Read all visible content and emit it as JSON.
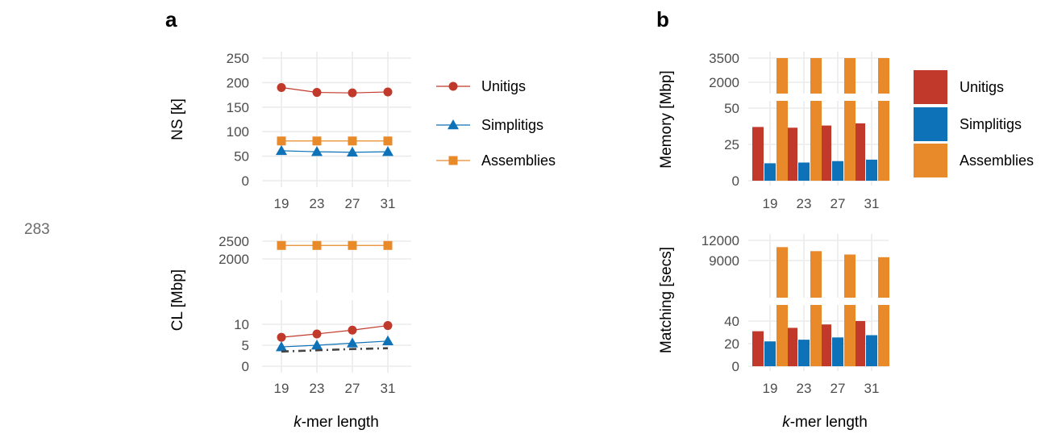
{
  "page_number": "283",
  "colors": {
    "Unitigs": "#c0392b",
    "Simplitigs": "#0e72b8",
    "Assemblies": "#e8892a",
    "Reference": "#444444"
  },
  "chart_data": [
    {
      "panel": "a",
      "type": "line",
      "ylabel": "NS [k]",
      "x": [
        19,
        23,
        27,
        31
      ],
      "yticks": [
        "0",
        "50",
        "100",
        "150",
        "200",
        "250"
      ],
      "ylim": [
        0,
        250
      ],
      "series": [
        {
          "name": "Unitigs",
          "marker": "circle",
          "values": [
            190,
            180,
            179,
            181
          ]
        },
        {
          "name": "Simplitigs",
          "marker": "triangle",
          "values": [
            61,
            59,
            58,
            59
          ]
        },
        {
          "name": "Assemblies",
          "marker": "square",
          "values": [
            81,
            81,
            81,
            81
          ]
        }
      ],
      "legend": "right"
    },
    {
      "panel": "a",
      "type": "line",
      "ylabel": "CL [Mbp]",
      "xlabel_prefix": "k",
      "xlabel_suffix": "-mer length",
      "x": [
        19,
        23,
        27,
        31
      ],
      "x_ticks": [
        "19",
        "23",
        "27",
        "31"
      ],
      "broken_axis": true,
      "upper_yticks": [
        "2000",
        "2500"
      ],
      "lower_yticks": [
        "0",
        "5",
        "10"
      ],
      "series": [
        {
          "name": "Unitigs",
          "marker": "circle",
          "values": [
            6.9,
            7.7,
            8.6,
            9.7
          ]
        },
        {
          "name": "Simplitigs",
          "marker": "triangle",
          "values": [
            4.6,
            5.0,
            5.5,
            6.0
          ]
        },
        {
          "name": "Assemblies",
          "marker": "square",
          "values": [
            2380,
            2380,
            2380,
            2380
          ]
        },
        {
          "style": "dashdot",
          "values": [
            3.5,
            3.8,
            4.1,
            4.3
          ]
        }
      ]
    },
    {
      "panel": "b",
      "type": "bar",
      "ylabel": "Memory [Mbp]",
      "categories": [
        "19",
        "23",
        "27",
        "31"
      ],
      "broken_axis": true,
      "upper_yticks": [
        "2000",
        "3500"
      ],
      "lower_yticks": [
        "0",
        "25",
        "50"
      ],
      "series": [
        {
          "name": "Unitigs",
          "values": [
            37,
            36.5,
            38,
            39.5
          ]
        },
        {
          "name": "Simplitigs",
          "values": [
            12,
            12.5,
            13.5,
            14.5
          ]
        },
        {
          "name": "Assemblies",
          "values": [
            3500,
            3500,
            3500,
            3500
          ]
        }
      ],
      "legend": "right"
    },
    {
      "panel": "b",
      "type": "bar",
      "ylabel": "Matching [secs]",
      "xlabel_prefix": "k",
      "xlabel_suffix": "-mer length",
      "categories": [
        "19",
        "23",
        "27",
        "31"
      ],
      "broken_axis": true,
      "upper_yticks": [
        "9000",
        "12000"
      ],
      "lower_yticks": [
        "0",
        "20",
        "40"
      ],
      "series": [
        {
          "name": "Unitigs",
          "values": [
            31,
            34,
            37,
            40
          ]
        },
        {
          "name": "Simplitigs",
          "values": [
            22,
            23.5,
            25.5,
            27.5
          ]
        },
        {
          "name": "Assemblies",
          "values": [
            11000,
            10400,
            9900,
            9500
          ]
        }
      ]
    }
  ],
  "panel_labels": {
    "a": "a",
    "b": "b"
  },
  "legend_a": [
    {
      "name": "Unitigs",
      "marker": "circle"
    },
    {
      "name": "Simplitigs",
      "marker": "triangle"
    },
    {
      "name": "Assemblies",
      "marker": "square"
    }
  ],
  "legend_b": [
    {
      "name": "Unitigs"
    },
    {
      "name": "Simplitigs"
    },
    {
      "name": "Assemblies"
    }
  ]
}
